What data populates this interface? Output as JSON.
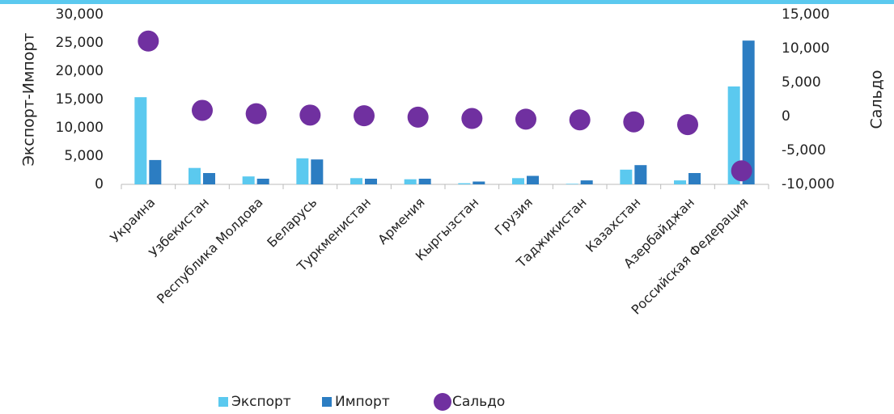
{
  "chart_data": {
    "type": "bar",
    "categories": [
      "Украина",
      "Узбекистан",
      "Республика Молдова",
      "Беларусь",
      "Туркменистан",
      "Армения",
      "Кыргызстан",
      "Грузия",
      "Таджикистан",
      "Казахстан",
      "Азербайджан",
      "Российская Федерация"
    ],
    "series": [
      {
        "name": "Экспорт",
        "color": "#5bc9ef",
        "values": [
          15400,
          2900,
          1400,
          4600,
          1100,
          900,
          200,
          1100,
          100,
          2600,
          700,
          17300
        ]
      },
      {
        "name": "Импорт",
        "color": "#2c7dc2",
        "values": [
          4300,
          2000,
          1000,
          4400,
          1000,
          1000,
          500,
          1500,
          700,
          3400,
          2000,
          25400
        ]
      },
      {
        "name": "Сальдо",
        "color": "#7030a0",
        "type": "scatter",
        "axis": "y2",
        "values": [
          11100,
          900,
          400,
          200,
          100,
          -100,
          -300,
          -400,
          -500,
          -800,
          -1200,
          -8000
        ]
      }
    ],
    "ylabel": "Экспорт-Импорт",
    "y2label": "Сальдо",
    "ylim": [
      0,
      30000
    ],
    "yticks": [
      {
        "value": 0,
        "label": "0"
      },
      {
        "value": 5000,
        "label": "5,000"
      },
      {
        "value": 10000,
        "label": "10,000"
      },
      {
        "value": 15000,
        "label": "15,000"
      },
      {
        "value": 20000,
        "label": "20,000"
      },
      {
        "value": 25000,
        "label": "25,000"
      },
      {
        "value": 30000,
        "label": "30,000"
      }
    ],
    "y2lim": [
      -10000,
      15000
    ],
    "y2ticks": [
      {
        "value": -10000,
        "label": "-10,000"
      },
      {
        "value": -5000,
        "label": "-5,000"
      },
      {
        "value": 0,
        "label": "0"
      },
      {
        "value": 5000,
        "label": "5,000"
      },
      {
        "value": 10000,
        "label": "10,000"
      },
      {
        "value": 15000,
        "label": "15,000"
      }
    ],
    "legend": "bottom"
  }
}
